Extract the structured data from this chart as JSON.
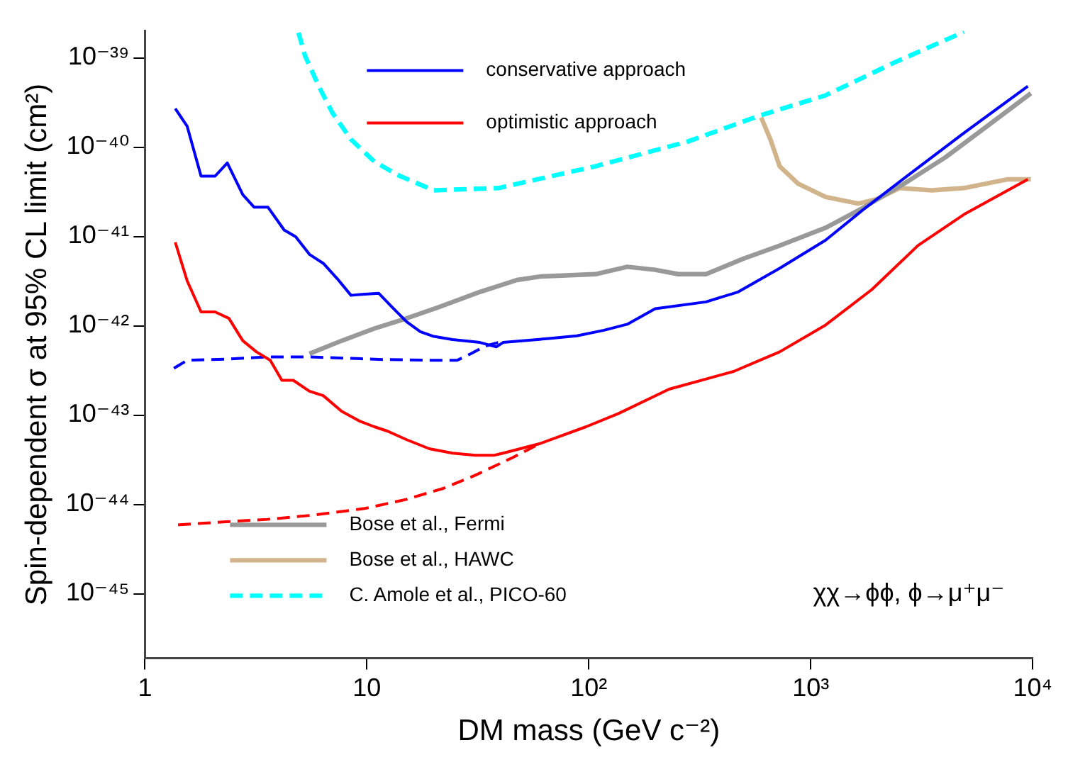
{
  "chart_data": {
    "type": "line",
    "xlabel": "DM mass (GeV c⁻²)",
    "ylabel": "Spin-dependent σ at 95% CL limit (cm²)",
    "annotations": [
      "χχ→ϕϕ, ϕ→μ⁺μ⁻"
    ],
    "log": "xy",
    "grid": false,
    "legend": "top",
    "marker": "none",
    "xlim": [
      1,
      10000
    ],
    "xticks": [
      1,
      10,
      {
        "value": 100,
        "label": "10²"
      },
      {
        "value": 1000,
        "label": "10³"
      },
      {
        "value": 10000,
        "label": "10⁴"
      }
    ],
    "ylim": [
      1.9e-46,
      2e-39
    ],
    "yticks": [
      {
        "value": 1e-45,
        "label": "10⁻⁴⁵"
      },
      {
        "value": 1e-44,
        "label": "10⁻⁴⁴"
      },
      {
        "value": 1e-43,
        "label": "10⁻⁴³"
      },
      {
        "value": 1e-42,
        "label": "10⁻⁴²"
      },
      {
        "value": 1e-41,
        "label": "10⁻⁴¹"
      },
      {
        "value": 1e-40,
        "label": "10⁻⁴⁰"
      },
      {
        "value": 1e-39,
        "label": "10⁻³⁹"
      }
    ],
    "series": [
      {
        "name": "conservative approach",
        "color": "#0000ff",
        "line_style": "solid",
        "x": [
          1.37,
          1.55,
          1.79,
          2.07,
          2.35,
          2.76,
          3.1,
          3.58,
          4.24,
          4.78,
          5.51,
          6.36,
          7.35,
          8.48,
          9.79,
          11.3,
          13.0,
          15.1,
          17.4,
          20.0,
          24.3,
          32.3,
          38.3,
          41.1,
          66.2,
          88.3,
          117,
          149,
          199,
          337,
          471,
          724,
          1167,
          1713,
          2761,
          4898,
          9506
        ],
        "values": [
          2.7e-40,
          1.71e-40,
          4.73e-41,
          4.73e-41,
          6.66e-41,
          2.93e-41,
          2.13e-41,
          2.13e-41,
          1.18e-41,
          9.9e-42,
          6.3e-42,
          5e-42,
          3.37e-42,
          2.19e-42,
          2.26e-42,
          2.31e-42,
          1.61e-42,
          1.11e-42,
          8.6e-43,
          7.6e-43,
          7e-43,
          6.5e-43,
          5.8e-43,
          6.5e-43,
          7.2e-43,
          7.7e-43,
          8.9e-43,
          1.04e-42,
          1.55e-42,
          1.85e-42,
          2.39e-42,
          4.4e-42,
          9.1e-42,
          1.97e-41,
          4.9e-41,
          1.44e-40,
          4.8e-40
        ]
      },
      {
        "name": "optimistic approach",
        "color": "#ff0000",
        "line_style": "solid",
        "x": [
          1.37,
          1.55,
          1.79,
          2.07,
          2.39,
          2.76,
          3.18,
          3.67,
          4.14,
          4.66,
          5.51,
          6.36,
          7.7,
          9.33,
          10.8,
          12.4,
          15.1,
          19.1,
          24.3,
          30.8,
          37.3,
          41.1,
          60.3,
          97.2,
          136,
          230,
          449,
          724,
          1167,
          1884,
          3040,
          4898,
          9506
        ],
        "values": [
          8.6e-42,
          3.18e-42,
          1.43e-42,
          1.43e-42,
          1.21e-42,
          6.8e-43,
          5.1e-43,
          4.1e-43,
          2.45e-43,
          2.45e-43,
          1.85e-43,
          1.65e-43,
          1.1e-43,
          8.5e-44,
          7.4e-44,
          6.6e-44,
          5.3e-44,
          4.2e-44,
          3.75e-44,
          3.54e-44,
          3.54e-44,
          3.75e-44,
          4.8e-44,
          7.4e-44,
          1.04e-43,
          1.95e-43,
          3.08e-43,
          5.1e-43,
          1.02e-42,
          2.54e-42,
          7.9e-42,
          1.76e-41,
          4.36e-41
        ]
      },
      {
        "color": "#0000ff",
        "line_style": "dashed",
        "x": [
          1.35,
          1.55,
          2.44,
          3.58,
          5.51,
          11.8,
          20.0,
          25.5,
          29.4,
          34.0,
          39.2
        ],
        "values": [
          3.34e-43,
          4.1e-43,
          4.25e-43,
          4.48e-43,
          4.48e-43,
          4.19e-43,
          4.1e-43,
          4.1e-43,
          4.86e-43,
          5.9e-43,
          6.5e-43
        ]
      },
      {
        "color": "#ff0000",
        "line_style": "dashed",
        "x": [
          1.41,
          2.33,
          3.58,
          5.78,
          9.79,
          15.1,
          22.1,
          30.8,
          45.2,
          60.3
        ],
        "values": [
          5.9e-45,
          6.4e-45,
          6.8e-45,
          7.6e-45,
          9e-45,
          1.14e-44,
          1.51e-44,
          2.12e-44,
          3.33e-44,
          4.8e-44
        ]
      },
      {
        "name": "Bose et al., Fermi",
        "color": "#999999",
        "line_style": "solid",
        "x": [
          5.51,
          7.7,
          10.8,
          15.1,
          21.0,
          32.3,
          47.4,
          60.3,
          107,
          149,
          199,
          253,
          337,
          494,
          724,
          1167,
          1713,
          2636,
          4046,
          6223,
          9810
        ],
        "values": [
          4.86e-43,
          6.8e-43,
          9.3e-43,
          1.21e-42,
          1.61e-42,
          2.39e-42,
          3.25e-42,
          3.56e-42,
          3.78e-42,
          4.57e-42,
          4.23e-42,
          3.78e-42,
          3.78e-42,
          5.6e-42,
          7.9e-42,
          1.25e-41,
          2.08e-41,
          3.9e-41,
          7.7e-41,
          1.71e-40,
          4e-40
        ]
      },
      {
        "name": "Bose et al., HAWC",
        "color": "#d2b48c",
        "line_style": "solid",
        "x": [
          598,
          658,
          724,
          877,
          1167,
          1633,
          1977,
          2512,
          3508,
          4898,
          7727,
          9810
        ],
        "values": [
          2.15e-40,
          1.22e-40,
          6.1e-41,
          3.9e-41,
          2.77e-41,
          2.33e-41,
          2.61e-41,
          3.48e-41,
          3.28e-41,
          3.48e-41,
          4.36e-41,
          4.36e-41
        ]
      },
      {
        "name": "C. Amole et al., PICO-60",
        "color": "#00ffff",
        "line_style": "dashed",
        "x": [
          4.92,
          5.26,
          6.07,
          7.0,
          8.48,
          10.8,
          13.7,
          20.0,
          39.2,
          107,
          278,
          598,
          1167,
          2393,
          4898
        ],
        "values": [
          1.91e-39,
          1.06e-39,
          4.8e-40,
          2.41e-40,
          1.22e-40,
          6.9e-41,
          4.9e-41,
          3.28e-41,
          3.48e-41,
          6.1e-41,
          1.15e-40,
          2.28e-40,
          3.8e-40,
          8.9e-40,
          1.95e-39
        ]
      }
    ]
  }
}
